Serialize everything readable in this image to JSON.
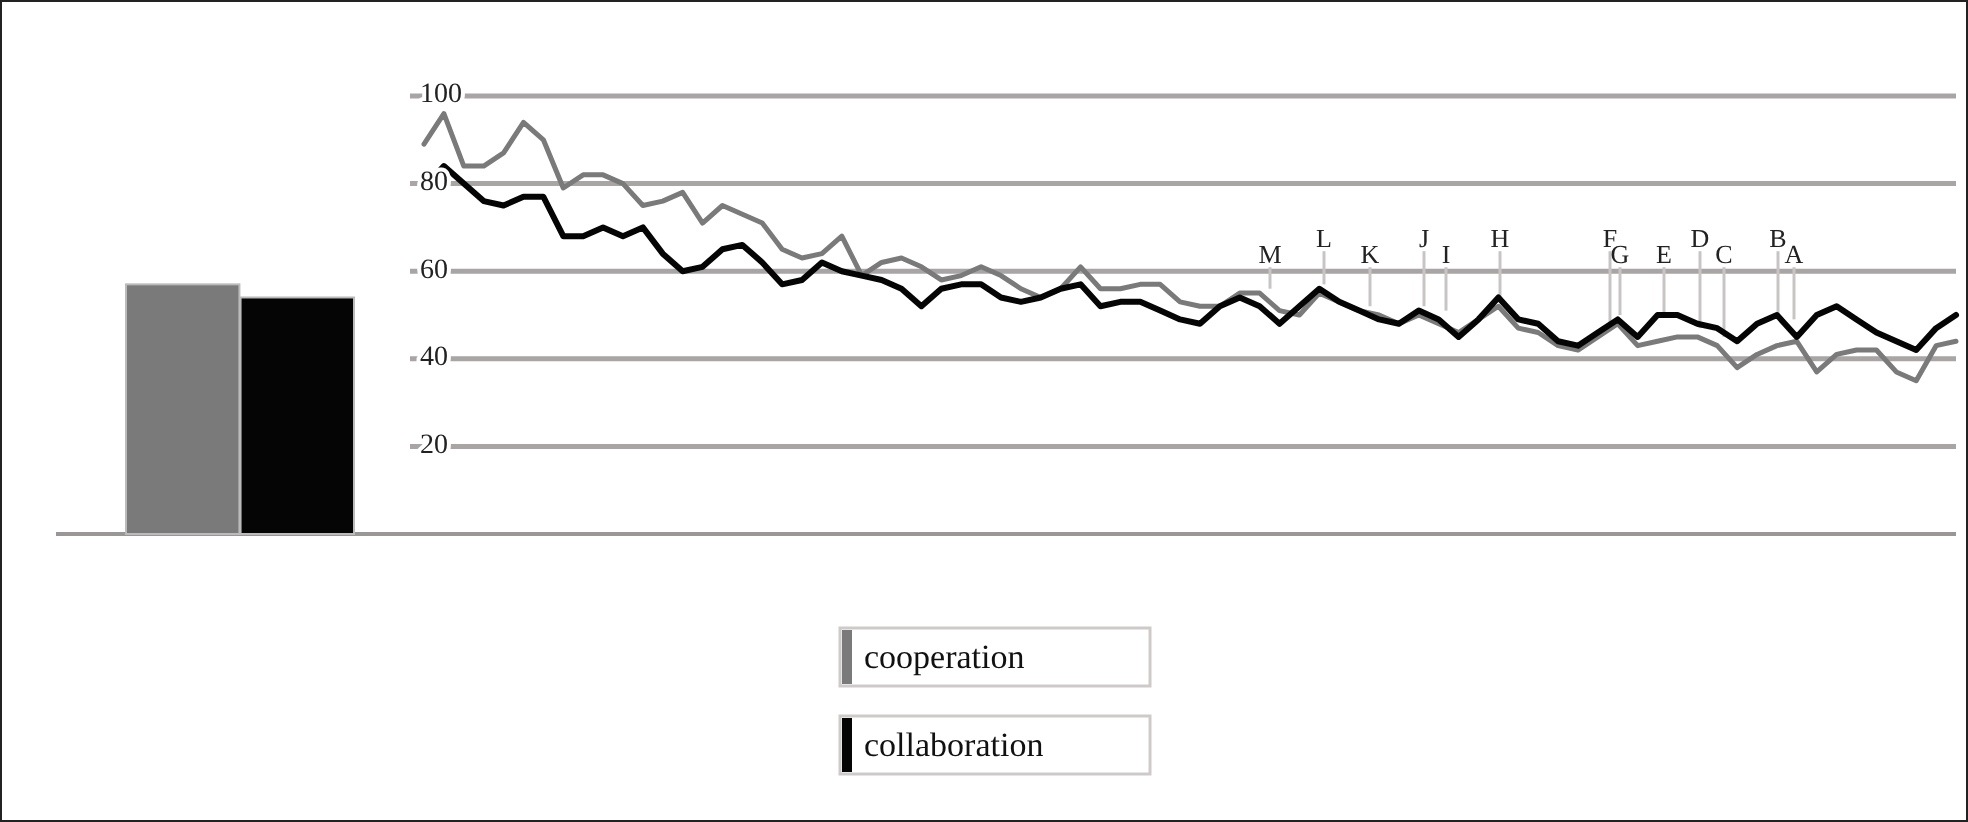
{
  "chart_data": [
    {
      "type": "bar",
      "categories": [
        null,
        null
      ],
      "values": [
        57,
        54
      ],
      "colors": [
        "#7a7a7a",
        "#050505"
      ],
      "ylim": [
        0,
        100
      ]
    },
    {
      "type": "line",
      "categories": [
        null,
        null,
        null,
        null,
        null,
        null,
        null,
        null,
        null,
        null,
        null,
        null,
        null,
        null,
        null,
        null,
        null,
        null,
        null,
        null,
        null,
        null,
        null,
        null,
        null,
        null,
        null,
        null,
        null,
        null,
        null,
        null,
        null,
        null,
        null,
        null,
        null,
        null,
        null,
        null,
        null,
        null,
        null,
        null,
        null,
        null,
        null,
        null,
        null,
        null,
        null,
        null,
        null,
        null,
        null,
        null,
        null,
        null,
        null,
        null,
        null,
        null,
        null,
        null,
        null,
        null,
        null,
        null,
        null,
        null,
        null,
        null,
        null,
        null,
        null,
        null,
        null,
        null
      ],
      "ylim": [
        0,
        100
      ],
      "yticks": [
        20,
        40,
        60,
        80,
        100
      ],
      "grid": "y",
      "legend": "bottom",
      "series": [
        {
          "name": "cooperation",
          "color": "#7a7a7a",
          "values": [
            89,
            96,
            84,
            84,
            87,
            94,
            90,
            79,
            82,
            82,
            80,
            75,
            76,
            78,
            71,
            75,
            73,
            71,
            65,
            63,
            64,
            68,
            59,
            62,
            63,
            61,
            58,
            59,
            61,
            59,
            56,
            54,
            56,
            61,
            56,
            56,
            57,
            57,
            53,
            52,
            52,
            55,
            55,
            51,
            50,
            55,
            53,
            51,
            50,
            48,
            50,
            48,
            46,
            49,
            52,
            47,
            46,
            43,
            42,
            45,
            48,
            43,
            44,
            45,
            45,
            43,
            38,
            41,
            43,
            44,
            37,
            41,
            42,
            42,
            37,
            35,
            43,
            44
          ]
        },
        {
          "name": "collaboration",
          "color": "#050505",
          "values": [
            79,
            84,
            80,
            76,
            75,
            77,
            77,
            68,
            68,
            70,
            68,
            70,
            64,
            60,
            61,
            65,
            66,
            62,
            57,
            58,
            62,
            60,
            59,
            58,
            56,
            52,
            56,
            57,
            57,
            54,
            53,
            54,
            56,
            57,
            52,
            53,
            53,
            51,
            49,
            48,
            52,
            54,
            52,
            48,
            52,
            56,
            53,
            51,
            49,
            48,
            51,
            49,
            45,
            49,
            54,
            49,
            48,
            44,
            43,
            46,
            49,
            45,
            50,
            50,
            48,
            47,
            44,
            48,
            50,
            45,
            50,
            52,
            49,
            46,
            44,
            42,
            47,
            50
          ]
        }
      ],
      "annotations": [
        {
          "text": "M",
          "y": 56
        },
        {
          "text": "L",
          "y": 57
        },
        {
          "text": "K",
          "y": 52
        },
        {
          "text": "J",
          "y": 52
        },
        {
          "text": "I",
          "y": 51
        },
        {
          "text": "H",
          "y": 54
        },
        {
          "text": "G",
          "y": 50
        },
        {
          "text": "F",
          "y": 48
        },
        {
          "text": "E",
          "y": 50
        },
        {
          "text": "D",
          "y": 47
        },
        {
          "text": "C",
          "y": 45
        },
        {
          "text": "B",
          "y": 50
        },
        {
          "text": "A",
          "y": 49
        }
      ]
    }
  ]
}
